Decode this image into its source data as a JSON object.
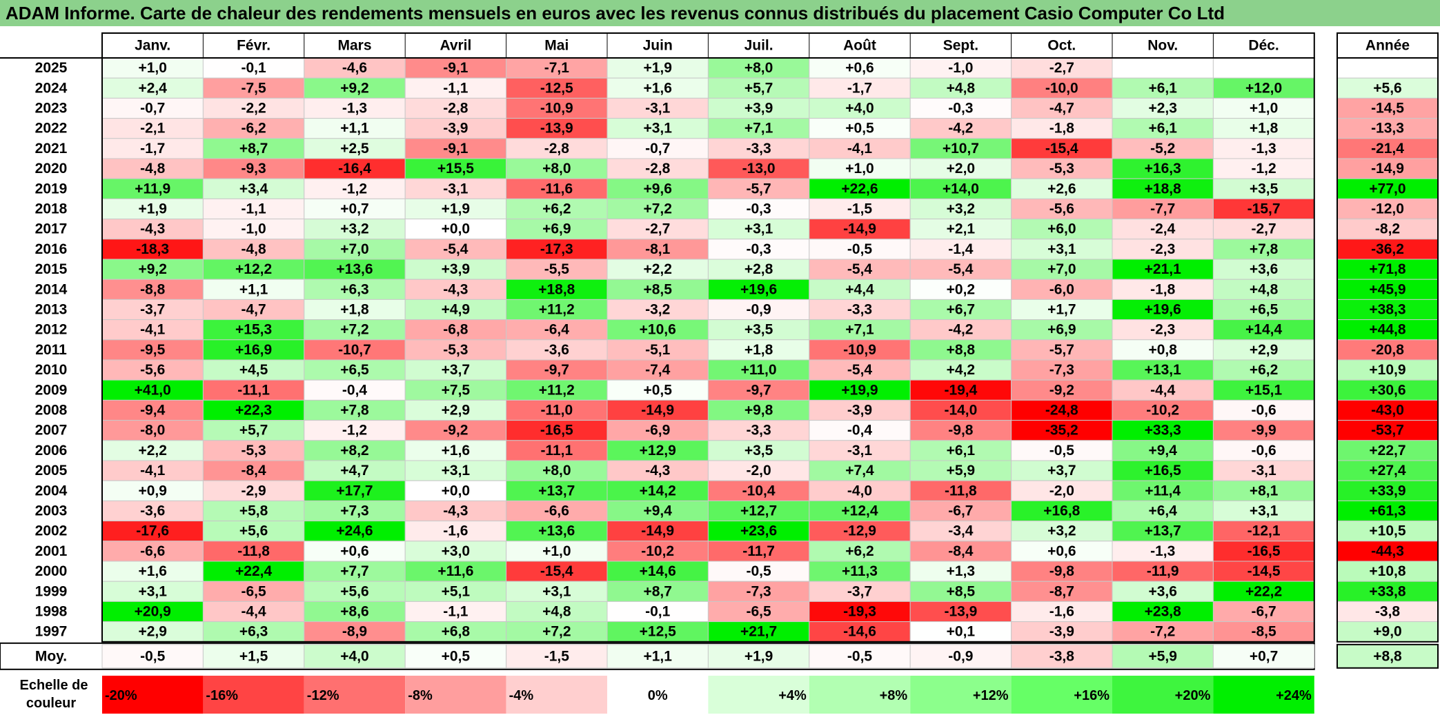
{
  "title": "ADAM Informe. Carte de chaleur des rendements mensuels en euros avec les revenus connus distribués du placement Casio Computer Co Ltd",
  "chart_data": {
    "type": "heatmap",
    "title": "ADAM Informe. Carte de chaleur des rendements mensuels en euros avec les revenus connus distribués du placement Casio Computer Co Ltd",
    "months": [
      "Janv.",
      "Févr.",
      "Mars",
      "Avril",
      "Mai",
      "Juin",
      "Juil.",
      "Août",
      "Sept.",
      "Oct.",
      "Nov.",
      "Déc."
    ],
    "year_header": "Année",
    "rows": [
      {
        "year": "2025",
        "values": [
          "+1,0",
          "-0,1",
          "-4,6",
          "-9,1",
          "-7,1",
          "+1,9",
          "+8,0",
          "+0,6",
          "-1,0",
          "-2,7",
          "",
          ""
        ],
        "annual": ""
      },
      {
        "year": "2024",
        "values": [
          "+2,4",
          "-7,5",
          "+9,2",
          "-1,1",
          "-12,5",
          "+1,6",
          "+5,7",
          "-1,7",
          "+4,8",
          "-10,0",
          "+6,1",
          "+12,0"
        ],
        "annual": "+5,6"
      },
      {
        "year": "2023",
        "values": [
          "-0,7",
          "-2,2",
          "-1,3",
          "-2,8",
          "-10,9",
          "-3,1",
          "+3,9",
          "+4,0",
          "-0,3",
          "-4,7",
          "+2,3",
          "+1,0"
        ],
        "annual": "-14,5"
      },
      {
        "year": "2022",
        "values": [
          "-2,1",
          "-6,2",
          "+1,1",
          "-3,9",
          "-13,9",
          "+3,1",
          "+7,1",
          "+0,5",
          "-4,2",
          "-1,8",
          "+6,1",
          "+1,8"
        ],
        "annual": "-13,3"
      },
      {
        "year": "2021",
        "values": [
          "-1,7",
          "+8,7",
          "+2,5",
          "-9,1",
          "-2,8",
          "-0,7",
          "-3,3",
          "-4,1",
          "+10,7",
          "-15,4",
          "-5,2",
          "-1,3"
        ],
        "annual": "-21,4"
      },
      {
        "year": "2020",
        "values": [
          "-4,8",
          "-9,3",
          "-16,4",
          "+15,5",
          "+8,0",
          "-2,8",
          "-13,0",
          "+1,0",
          "+2,0",
          "-5,3",
          "+16,3",
          "-1,2"
        ],
        "annual": "-14,9"
      },
      {
        "year": "2019",
        "values": [
          "+11,9",
          "+3,4",
          "-1,2",
          "-3,1",
          "-11,6",
          "+9,6",
          "-5,7",
          "+22,6",
          "+14,0",
          "+2,6",
          "+18,8",
          "+3,5"
        ],
        "annual": "+77,0"
      },
      {
        "year": "2018",
        "values": [
          "+1,9",
          "-1,1",
          "+0,7",
          "+1,9",
          "+6,2",
          "+7,2",
          "-0,3",
          "-1,5",
          "+3,2",
          "-5,6",
          "-7,7",
          "-15,7"
        ],
        "annual": "-12,0"
      },
      {
        "year": "2017",
        "values": [
          "-4,3",
          "-1,0",
          "+3,2",
          "+0,0",
          "+6,9",
          "-2,7",
          "+3,1",
          "-14,9",
          "+2,1",
          "+6,0",
          "-2,4",
          "-2,7"
        ],
        "annual": "-8,2"
      },
      {
        "year": "2016",
        "values": [
          "-18,3",
          "-4,8",
          "+7,0",
          "-5,4",
          "-17,3",
          "-8,1",
          "-0,3",
          "-0,5",
          "-1,4",
          "+3,1",
          "-2,3",
          "+7,8"
        ],
        "annual": "-36,2"
      },
      {
        "year": "2015",
        "values": [
          "+9,2",
          "+12,2",
          "+13,6",
          "+3,9",
          "-5,5",
          "+2,2",
          "+2,8",
          "-5,4",
          "-5,4",
          "+7,0",
          "+21,1",
          "+3,6"
        ],
        "annual": "+71,8"
      },
      {
        "year": "2014",
        "values": [
          "-8,8",
          "+1,1",
          "+6,3",
          "-4,3",
          "+18,8",
          "+8,5",
          "+19,6",
          "+4,4",
          "+0,2",
          "-6,0",
          "-1,8",
          "+4,8"
        ],
        "annual": "+45,9"
      },
      {
        "year": "2013",
        "values": [
          "-3,7",
          "-4,7",
          "+1,8",
          "+4,9",
          "+11,2",
          "-3,2",
          "-0,9",
          "-3,3",
          "+6,7",
          "+1,7",
          "+19,6",
          "+6,5"
        ],
        "annual": "+38,3"
      },
      {
        "year": "2012",
        "values": [
          "-4,1",
          "+15,3",
          "+7,2",
          "-6,8",
          "-6,4",
          "+10,6",
          "+3,5",
          "+7,1",
          "-4,2",
          "+6,9",
          "-2,3",
          "+14,4"
        ],
        "annual": "+44,8"
      },
      {
        "year": "2011",
        "values": [
          "-9,5",
          "+16,9",
          "-10,7",
          "-5,3",
          "-3,6",
          "-5,1",
          "+1,8",
          "-10,9",
          "+8,8",
          "-5,7",
          "+0,8",
          "+2,9"
        ],
        "annual": "-20,8"
      },
      {
        "year": "2010",
        "values": [
          "-5,6",
          "+4,5",
          "+6,5",
          "+3,7",
          "-9,7",
          "-7,4",
          "+11,0",
          "-5,4",
          "+4,2",
          "-7,3",
          "+13,1",
          "+6,2"
        ],
        "annual": "+10,9"
      },
      {
        "year": "2009",
        "values": [
          "+41,0",
          "-11,1",
          "-0,4",
          "+7,5",
          "+11,2",
          "+0,5",
          "-9,7",
          "+19,9",
          "-19,4",
          "-9,2",
          "-4,4",
          "+15,1"
        ],
        "annual": "+30,6"
      },
      {
        "year": "2008",
        "values": [
          "-9,4",
          "+22,3",
          "+7,8",
          "+2,9",
          "-11,0",
          "-14,9",
          "+9,8",
          "-3,9",
          "-14,0",
          "-24,8",
          "-10,2",
          "-0,6"
        ],
        "annual": "-43,0"
      },
      {
        "year": "2007",
        "values": [
          "-8,0",
          "+5,7",
          "-1,2",
          "-9,2",
          "-16,5",
          "-6,9",
          "-3,3",
          "-0,4",
          "-9,8",
          "-35,2",
          "+33,3",
          "-9,9"
        ],
        "annual": "-53,7"
      },
      {
        "year": "2006",
        "values": [
          "+2,2",
          "-5,3",
          "+8,2",
          "+1,6",
          "-11,1",
          "+12,9",
          "+3,5",
          "-3,1",
          "+6,1",
          "-0,5",
          "+9,4",
          "-0,6"
        ],
        "annual": "+22,7"
      },
      {
        "year": "2005",
        "values": [
          "-4,1",
          "-8,4",
          "+4,7",
          "+3,1",
          "+8,0",
          "-4,3",
          "-2,0",
          "+7,4",
          "+5,9",
          "+3,7",
          "+16,5",
          "-3,1"
        ],
        "annual": "+27,4"
      },
      {
        "year": "2004",
        "values": [
          "+0,9",
          "-2,9",
          "+17,7",
          "+0,0",
          "+13,7",
          "+14,2",
          "-10,4",
          "-4,0",
          "-11,8",
          "-2,0",
          "+11,4",
          "+8,1"
        ],
        "annual": "+33,9"
      },
      {
        "year": "2003",
        "values": [
          "-3,6",
          "+5,8",
          "+7,3",
          "-4,3",
          "-6,6",
          "+9,4",
          "+12,7",
          "+12,4",
          "-6,7",
          "+16,8",
          "+6,4",
          "+3,1"
        ],
        "annual": "+61,3"
      },
      {
        "year": "2002",
        "values": [
          "-17,6",
          "+5,6",
          "+24,6",
          "-1,6",
          "+13,6",
          "-14,9",
          "+23,6",
          "-12,9",
          "-3,4",
          "+3,2",
          "+13,7",
          "-12,1"
        ],
        "annual": "+10,5"
      },
      {
        "year": "2001",
        "values": [
          "-6,6",
          "-11,8",
          "+0,6",
          "+3,0",
          "+1,0",
          "-10,2",
          "-11,7",
          "+6,2",
          "-8,4",
          "+0,6",
          "-1,3",
          "-16,5"
        ],
        "annual": "-44,3"
      },
      {
        "year": "2000",
        "values": [
          "+1,6",
          "+22,4",
          "+7,7",
          "+11,6",
          "-15,4",
          "+14,6",
          "-0,5",
          "+11,3",
          "+1,3",
          "-9,8",
          "-11,9",
          "-14,5"
        ],
        "annual": "+10,8"
      },
      {
        "year": "1999",
        "values": [
          "+3,1",
          "-6,5",
          "+5,6",
          "+5,1",
          "+3,1",
          "+8,7",
          "-7,3",
          "-3,7",
          "+8,5",
          "-8,7",
          "+3,6",
          "+22,2"
        ],
        "annual": "+33,8"
      },
      {
        "year": "1998",
        "values": [
          "+20,9",
          "-4,4",
          "+8,6",
          "-1,1",
          "+4,8",
          "-0,1",
          "-6,5",
          "-19,3",
          "-13,9",
          "-1,6",
          "+23,8",
          "-6,7"
        ],
        "annual": "-3,8"
      },
      {
        "year": "1997",
        "values": [
          "+2,9",
          "+6,3",
          "-8,9",
          "+6,8",
          "+7,2",
          "+12,5",
          "+21,7",
          "-14,6",
          "+0,1",
          "-3,9",
          "-7,2",
          "-8,5"
        ],
        "annual": "+9,0"
      }
    ],
    "average": {
      "label": "Moy.",
      "values": [
        "-0,5",
        "+1,5",
        "+4,0",
        "+0,5",
        "-1,5",
        "+1,1",
        "+1,9",
        "-0,5",
        "-0,9",
        "-3,8",
        "+5,9",
        "+0,7"
      ],
      "annual": "+8,8"
    },
    "scale": {
      "label_line1": "Echelle de",
      "label_line2": "couleur",
      "steps": [
        "-20%",
        "-16%",
        "-12%",
        "-8%",
        "-4%",
        "0%",
        "+4%",
        "+8%",
        "+12%",
        "+16%",
        "+20%",
        "+24%"
      ],
      "colors": [
        "#ff0000",
        "#ff4444",
        "#ff7070",
        "#ff9e9e",
        "#ffcfcf",
        "#ffffff",
        "#d9ffd9",
        "#b2ffb2",
        "#8cff8c",
        "#66ff66",
        "#3ef53e",
        "#00ef00"
      ]
    }
  }
}
